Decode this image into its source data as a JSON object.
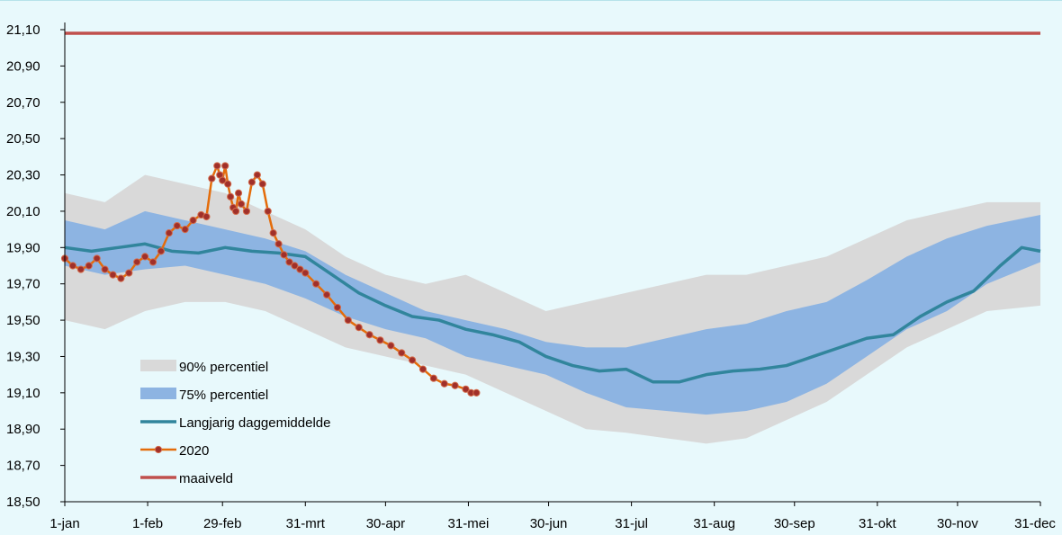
{
  "chart_data": {
    "type": "line",
    "title": "",
    "xlabel": "",
    "ylabel": "",
    "ylim": [
      18.5,
      21.1
    ],
    "y_ticks": [
      "21,10",
      "20,90",
      "20,70",
      "20,50",
      "20,30",
      "20,10",
      "19,90",
      "19,70",
      "19,50",
      "19,30",
      "19,10",
      "18,90",
      "18,70",
      "18,50"
    ],
    "y_tick_values": [
      21.1,
      20.9,
      20.7,
      20.5,
      20.3,
      20.1,
      19.9,
      19.7,
      19.5,
      19.3,
      19.1,
      18.9,
      18.7,
      18.5
    ],
    "x_ticks": [
      "1-jan",
      "1-feb",
      "29-feb",
      "31-mrt",
      "30-apr",
      "31-mei",
      "30-jun",
      "31-jul",
      "31-aug",
      "30-sep",
      "31-okt",
      "30-nov",
      "31-dec"
    ],
    "x_tick_days": [
      0,
      31,
      59,
      90,
      120,
      151,
      181,
      212,
      243,
      273,
      304,
      334,
      365
    ],
    "grid": false,
    "legend_placement": "bottom-left",
    "legend": [
      {
        "label": "90% percentiel",
        "kind": "band",
        "color": "#d9d9d9"
      },
      {
        "label": "75% percentiel",
        "kind": "band",
        "color": "#8db4e2"
      },
      {
        "label": "Langjarig daggemiddelde",
        "kind": "line",
        "color": "#31859c"
      },
      {
        "label": "2020",
        "kind": "line-marker",
        "color": "#e46c0a",
        "marker_color": "#a0302a"
      },
      {
        "label": "maaiveld",
        "kind": "line",
        "color": "#c0504d"
      }
    ],
    "series": [
      {
        "name": "90% percentiel",
        "x": [
          0,
          15,
          30,
          45,
          60,
          75,
          90,
          105,
          120,
          135,
          150,
          165,
          180,
          195,
          210,
          225,
          240,
          255,
          270,
          285,
          300,
          315,
          330,
          345,
          365
        ],
        "lower": [
          19.5,
          19.45,
          19.55,
          19.6,
          19.6,
          19.55,
          19.45,
          19.35,
          19.3,
          19.25,
          19.2,
          19.1,
          19.0,
          18.9,
          18.88,
          18.85,
          18.82,
          18.85,
          18.95,
          19.05,
          19.2,
          19.35,
          19.45,
          19.55,
          19.58
        ],
        "upper": [
          20.2,
          20.15,
          20.3,
          20.25,
          20.2,
          20.1,
          20.0,
          19.85,
          19.75,
          19.7,
          19.75,
          19.65,
          19.55,
          19.6,
          19.65,
          19.7,
          19.75,
          19.75,
          19.8,
          19.85,
          19.95,
          20.05,
          20.1,
          20.15,
          20.15
        ]
      },
      {
        "name": "75% percentiel",
        "x": [
          0,
          15,
          30,
          45,
          60,
          75,
          90,
          105,
          120,
          135,
          150,
          165,
          180,
          195,
          210,
          225,
          240,
          255,
          270,
          285,
          300,
          315,
          330,
          345,
          365
        ],
        "lower": [
          19.8,
          19.75,
          19.78,
          19.8,
          19.75,
          19.7,
          19.62,
          19.52,
          19.45,
          19.4,
          19.3,
          19.25,
          19.2,
          19.1,
          19.02,
          19.0,
          18.98,
          19.0,
          19.05,
          19.15,
          19.3,
          19.45,
          19.55,
          19.7,
          19.82
        ],
        "upper": [
          20.05,
          20.0,
          20.1,
          20.05,
          20.0,
          19.95,
          19.88,
          19.75,
          19.65,
          19.55,
          19.5,
          19.45,
          19.38,
          19.35,
          19.35,
          19.4,
          19.45,
          19.48,
          19.55,
          19.6,
          19.72,
          19.85,
          19.95,
          20.02,
          20.08
        ]
      },
      {
        "name": "Langjarig daggemiddelde",
        "x": [
          0,
          10,
          20,
          30,
          40,
          50,
          60,
          70,
          80,
          90,
          100,
          110,
          120,
          130,
          140,
          150,
          160,
          170,
          180,
          190,
          200,
          210,
          220,
          230,
          240,
          250,
          260,
          270,
          280,
          290,
          300,
          310,
          320,
          330,
          340,
          350,
          358,
          365
        ],
        "y": [
          19.9,
          19.88,
          19.9,
          19.92,
          19.88,
          19.87,
          19.9,
          19.88,
          19.87,
          19.85,
          19.75,
          19.65,
          19.58,
          19.52,
          19.5,
          19.45,
          19.42,
          19.38,
          19.3,
          19.25,
          19.22,
          19.23,
          19.16,
          19.16,
          19.2,
          19.22,
          19.23,
          19.25,
          19.3,
          19.35,
          19.4,
          19.42,
          19.52,
          19.6,
          19.66,
          19.8,
          19.9,
          19.88
        ]
      },
      {
        "name": "2020",
        "x": [
          0,
          3,
          6,
          9,
          12,
          15,
          18,
          21,
          24,
          27,
          30,
          33,
          36,
          39,
          42,
          45,
          48,
          51,
          53,
          55,
          57,
          58,
          59,
          60,
          61,
          62,
          63,
          64,
          65,
          66,
          68,
          70,
          72,
          74,
          76,
          78,
          80,
          82,
          84,
          86,
          88,
          90,
          94,
          98,
          102,
          106,
          110,
          114,
          118,
          122,
          126,
          130,
          134,
          138,
          142,
          146,
          150,
          152,
          154
        ],
        "y": [
          19.84,
          19.8,
          19.78,
          19.8,
          19.84,
          19.78,
          19.75,
          19.73,
          19.76,
          19.82,
          19.85,
          19.82,
          19.88,
          19.98,
          20.02,
          20.0,
          20.05,
          20.08,
          20.07,
          20.28,
          20.35,
          20.3,
          20.27,
          20.35,
          20.25,
          20.18,
          20.12,
          20.1,
          20.2,
          20.14,
          20.1,
          20.26,
          20.3,
          20.25,
          20.1,
          19.98,
          19.92,
          19.86,
          19.82,
          19.8,
          19.78,
          19.76,
          19.7,
          19.64,
          19.57,
          19.5,
          19.46,
          19.42,
          19.39,
          19.36,
          19.32,
          19.28,
          19.23,
          19.18,
          19.15,
          19.14,
          19.12,
          19.1,
          19.1
        ]
      },
      {
        "name": "maaiveld",
        "x": [
          0,
          365
        ],
        "y": [
          21.08,
          21.08
        ]
      }
    ]
  }
}
